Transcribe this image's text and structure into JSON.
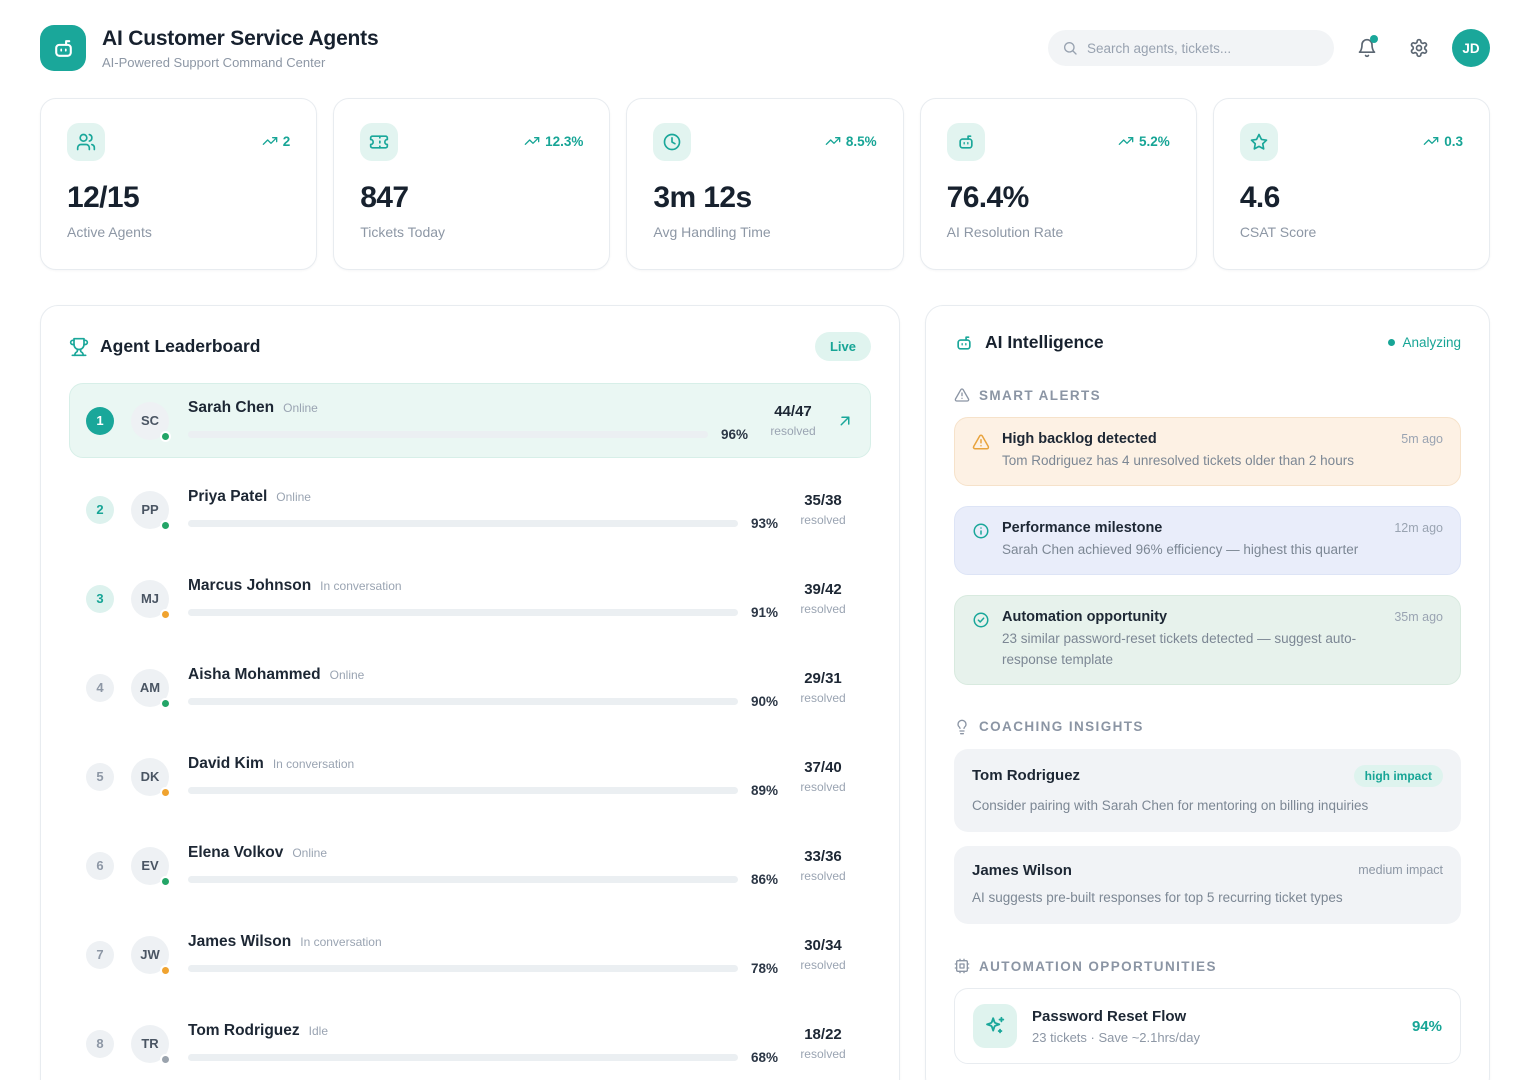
{
  "colors": {
    "accent": "#1aa79a",
    "accent_text": "#17a596",
    "accent_soft": "#e2f4f0",
    "status": {
      "Online": "#23a567",
      "In conversation": "#f0a32f",
      "Idle": "#9aa3ad"
    },
    "alert_tones": {
      "warning": {
        "bg": "#fdf1e4",
        "border": "#f6e2ca",
        "icon": "#e8a33d"
      },
      "info": {
        "bg": "#e9edfa",
        "border": "#dde4f6",
        "icon": "#1aa79a"
      },
      "success": {
        "bg": "#e7f2ec",
        "border": "#d8eadf",
        "icon": "#1aa79a"
      }
    }
  },
  "header": {
    "title": "AI Customer Service Agents",
    "subtitle": "AI-Powered Support Command Center",
    "search_placeholder": "Search agents, tickets...",
    "avatar_initials": "JD"
  },
  "stats": [
    {
      "icon": "users",
      "value": "12/15",
      "label": "Active Agents",
      "trend": "2"
    },
    {
      "icon": "ticket",
      "value": "847",
      "label": "Tickets Today",
      "trend": "12.3%"
    },
    {
      "icon": "clock",
      "value": "3m 12s",
      "label": "Avg Handling Time",
      "trend": "8.5%"
    },
    {
      "icon": "bot",
      "value": "76.4%",
      "label": "AI Resolution Rate",
      "trend": "5.2%"
    },
    {
      "icon": "star",
      "value": "4.6",
      "label": "CSAT Score",
      "trend": "0.3"
    }
  ],
  "leaderboard": {
    "title": "Agent Leaderboard",
    "live_badge": "Live",
    "agents": [
      {
        "rank": "1",
        "initials": "SC",
        "name": "Sarah Chen",
        "status": "Online",
        "efficiency_pct": 96,
        "efficiency": "96%",
        "resolved": "44/47",
        "resolved_label": "resolved",
        "highlighted": true
      },
      {
        "rank": "2",
        "initials": "PP",
        "name": "Priya Patel",
        "status": "Online",
        "efficiency_pct": 93,
        "efficiency": "93%",
        "resolved": "35/38",
        "resolved_label": "resolved",
        "highlighted": false
      },
      {
        "rank": "3",
        "initials": "MJ",
        "name": "Marcus Johnson",
        "status": "In conversation",
        "efficiency_pct": 91,
        "efficiency": "91%",
        "resolved": "39/42",
        "resolved_label": "resolved",
        "highlighted": false
      },
      {
        "rank": "4",
        "initials": "AM",
        "name": "Aisha Mohammed",
        "status": "Online",
        "efficiency_pct": 90,
        "efficiency": "90%",
        "resolved": "29/31",
        "resolved_label": "resolved",
        "highlighted": false
      },
      {
        "rank": "5",
        "initials": "DK",
        "name": "David Kim",
        "status": "In conversation",
        "efficiency_pct": 89,
        "efficiency": "89%",
        "resolved": "37/40",
        "resolved_label": "resolved",
        "highlighted": false
      },
      {
        "rank": "6",
        "initials": "EV",
        "name": "Elena Volkov",
        "status": "Online",
        "efficiency_pct": 86,
        "efficiency": "86%",
        "resolved": "33/36",
        "resolved_label": "resolved",
        "highlighted": false
      },
      {
        "rank": "7",
        "initials": "JW",
        "name": "James Wilson",
        "status": "In conversation",
        "efficiency_pct": 78,
        "efficiency": "78%",
        "resolved": "30/34",
        "resolved_label": "resolved",
        "highlighted": false
      },
      {
        "rank": "8",
        "initials": "TR",
        "name": "Tom Rodriguez",
        "status": "Idle",
        "efficiency_pct": 68,
        "efficiency": "68%",
        "resolved": "18/22",
        "resolved_label": "resolved",
        "highlighted": false
      }
    ]
  },
  "intelligence": {
    "title": "AI Intelligence",
    "status": "Analyzing",
    "smart_alerts": {
      "label": "SMART ALERTS",
      "items": [
        {
          "tone": "warning",
          "icon": "warning",
          "title": "High backlog detected",
          "time": "5m ago",
          "description": "Tom Rodriguez has 4 unresolved tickets older than 2 hours"
        },
        {
          "tone": "info",
          "icon": "info",
          "title": "Performance milestone",
          "time": "12m ago",
          "description": "Sarah Chen achieved 96% efficiency — highest this quarter"
        },
        {
          "tone": "success",
          "icon": "check",
          "title": "Automation opportunity",
          "time": "35m ago",
          "description": "23 similar password-reset tickets detected — suggest auto-response template"
        }
      ]
    },
    "coaching_insights": {
      "label": "COACHING INSIGHTS",
      "items": [
        {
          "name": "Tom Rodriguez",
          "impact": "high impact",
          "impact_level": "high",
          "description": "Consider pairing with Sarah Chen for mentoring on billing inquiries"
        },
        {
          "name": "James Wilson",
          "impact": "medium impact",
          "impact_level": "medium",
          "description": "AI suggests pre-built responses for top 5 recurring ticket types"
        }
      ]
    },
    "automation_opportunities": {
      "label": "AUTOMATION OPPORTUNITIES",
      "items": [
        {
          "icon": "sparkles",
          "name": "Password Reset Flow",
          "meta": "23 tickets · Save ~2.1hrs/day",
          "score": "94%"
        }
      ]
    }
  }
}
